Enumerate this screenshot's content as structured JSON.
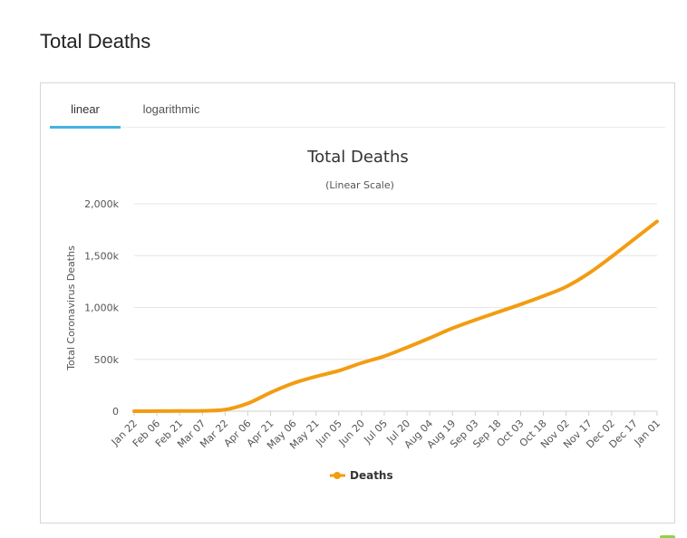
{
  "page": {
    "title": "Total Deaths"
  },
  "tabs": [
    {
      "label": "linear",
      "active": true
    },
    {
      "label": "logarithmic",
      "active": false
    }
  ],
  "chart_data": {
    "type": "line",
    "title": "Total Deaths",
    "subtitle": "(Linear Scale)",
    "xlabel": "",
    "ylabel": "Total Coronavirus Deaths",
    "ylim": [
      0,
      2000000
    ],
    "y_ticks": [
      0,
      500000,
      1000000,
      1500000,
      2000000
    ],
    "y_tick_labels": [
      "0",
      "500k",
      "1,000k",
      "1,500k",
      "2,000k"
    ],
    "x_tick_labels": [
      "Jan 22",
      "Feb 06",
      "Feb 21",
      "Mar 07",
      "Mar 22",
      "Apr 06",
      "Apr 21",
      "May 06",
      "May 21",
      "Jun 05",
      "Jun 20",
      "Jul 05",
      "Jul 20",
      "Aug 04",
      "Aug 19",
      "Sep 03",
      "Sep 18",
      "Oct 03",
      "Oct 18",
      "Nov 02",
      "Nov 17",
      "Dec 02",
      "Dec 17",
      "Jan 01"
    ],
    "grid": true,
    "legend": "bottom-center",
    "series": [
      {
        "name": "Deaths",
        "color": "#f39c12",
        "values": [
          17,
          560,
          2400,
          3600,
          15000,
          75000,
          180000,
          270000,
          335000,
          390000,
          465000,
          530000,
          615000,
          705000,
          800000,
          880000,
          955000,
          1030000,
          1110000,
          1200000,
          1330000,
          1490000,
          1660000,
          1830000
        ]
      }
    ]
  },
  "colors": {
    "accent_tab": "#45b3e0",
    "series": "#f39c12",
    "grid": "#e6e6e6"
  }
}
